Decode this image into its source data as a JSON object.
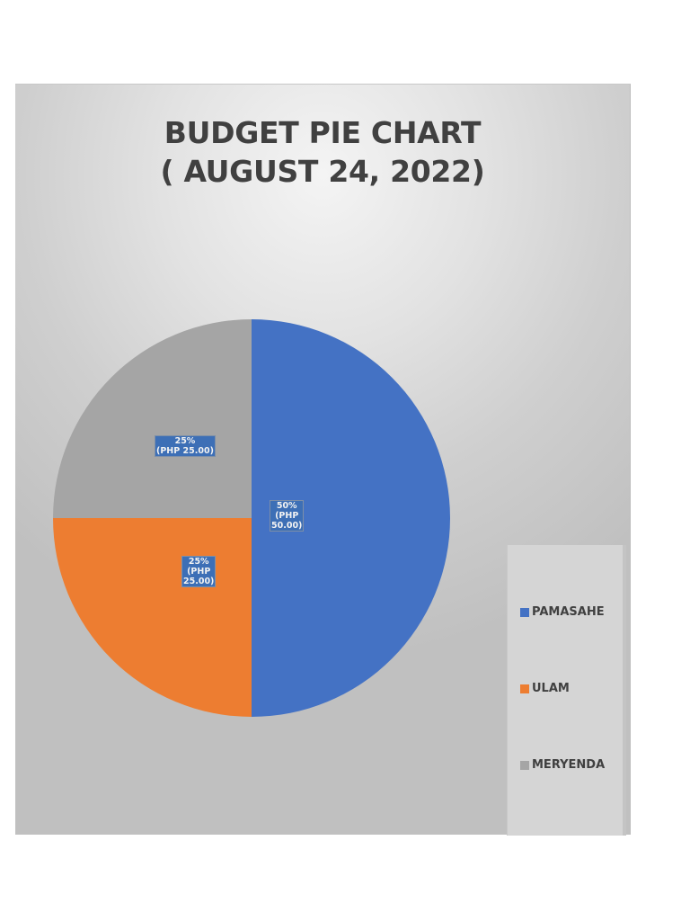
{
  "chart_data": {
    "type": "pie",
    "title": "BUDGET PIE CHART ( AUGUST 24, 2022)",
    "title_lines": [
      "BUDGET PIE CHART",
      "( AUGUST 24, 2022)"
    ],
    "categories": [
      "PAMASAHE",
      "ULAM",
      "MERYENDA"
    ],
    "values": [
      50.0,
      25.0,
      25.0
    ],
    "percentages": [
      50,
      25,
      25
    ],
    "currency": "PHP",
    "colors": [
      "#4472c4",
      "#ed7d31",
      "#a5a5a5"
    ],
    "data_labels": [
      {
        "lines": [
          "50%",
          "(PHP",
          "50.00)"
        ]
      },
      {
        "lines": [
          "25%",
          "(PHP",
          "25.00)"
        ]
      },
      {
        "lines": [
          "25%",
          "(PHP 25.00)"
        ]
      }
    ],
    "legend_position": "right",
    "start_angle": 0,
    "direction": "clockwise"
  },
  "legend": {
    "items": [
      {
        "label": "PAMASAHE",
        "color": "#4472c4"
      },
      {
        "label": "ULAM",
        "color": "#ed7d31"
      },
      {
        "label": "MERYENDA",
        "color": "#a5a5a5"
      }
    ]
  }
}
